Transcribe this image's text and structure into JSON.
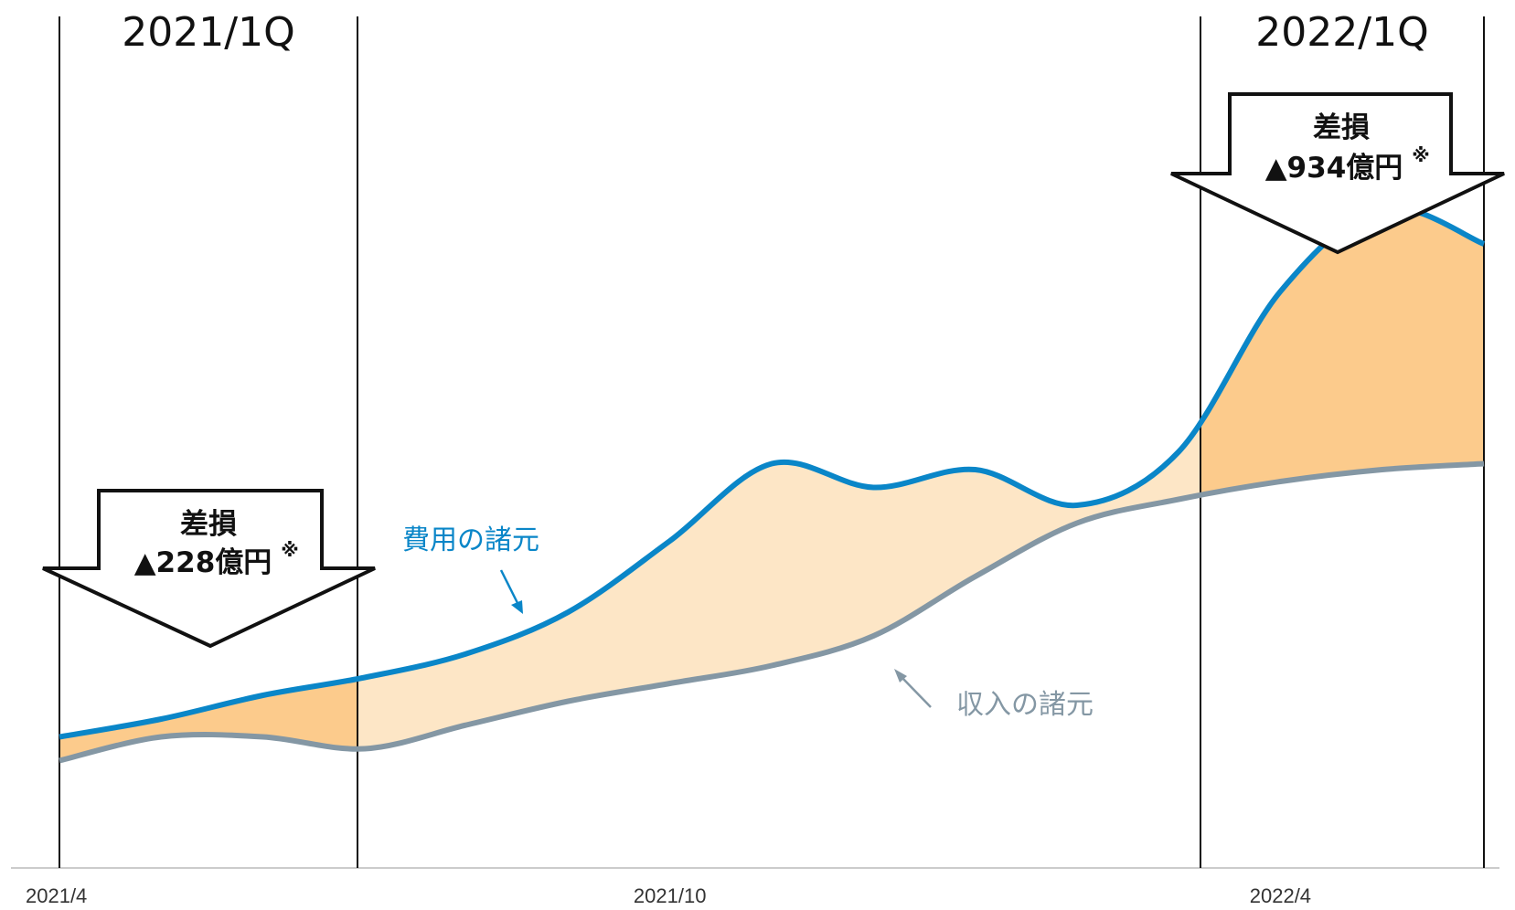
{
  "colors": {
    "expense": "#0a86c8",
    "income": "#8497a4",
    "gap_light": "#fde6c6",
    "gap_dark": "#fccb8c",
    "rule": "#111111",
    "axis": "#cccccc"
  },
  "chart_data": {
    "type": "area",
    "x": [
      "2021/4",
      "2021/5",
      "2021/6",
      "2021/7",
      "2021/8",
      "2021/9",
      "2021/10",
      "2021/11",
      "2021/12",
      "2022/1",
      "2022/2",
      "2022/3",
      "2022/4",
      "2022/5",
      "2022/6"
    ],
    "x_ticks": [
      "2021/4",
      "2021/10",
      "2022/4"
    ],
    "series": [
      {
        "name": "費用の諸元",
        "values": [
          19,
          22,
          26,
          29,
          33,
          40,
          52,
          65,
          61,
          64,
          58,
          67,
          94,
          108,
          102
        ]
      },
      {
        "name": "収入の諸元",
        "values": [
          15,
          19,
          19,
          17,
          21,
          25,
          28,
          31,
          36,
          46,
          55,
          59,
          62,
          64,
          65
        ]
      }
    ],
    "ylim": [
      0,
      120
    ],
    "grid": false,
    "annotations": [
      {
        "period": "2021/1Q",
        "line1": "差損",
        "line2": "▲228億円",
        "mark": "※"
      },
      {
        "period": "2022/1Q",
        "line1": "差損",
        "line2": "▲934億円",
        "mark": "※"
      }
    ]
  }
}
